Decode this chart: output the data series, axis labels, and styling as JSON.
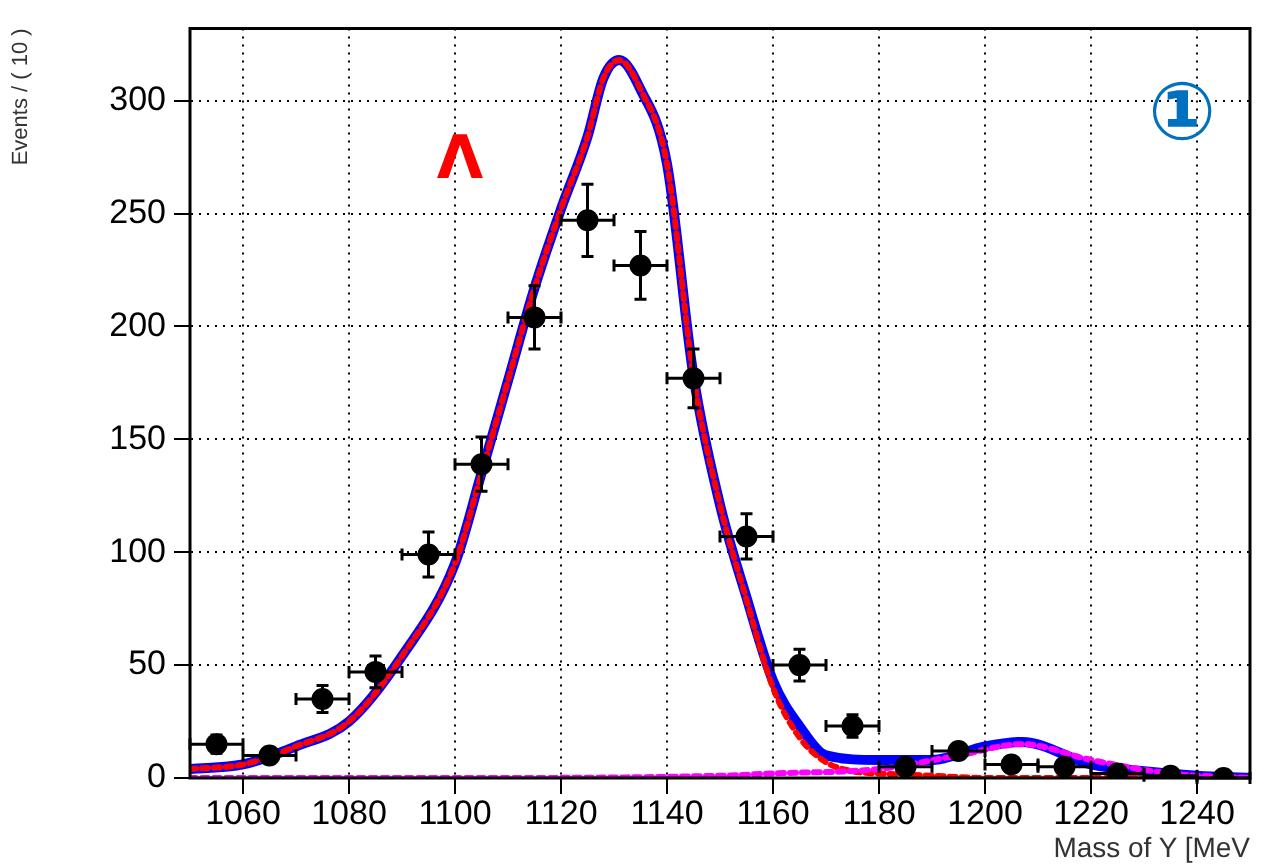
{
  "chart_data": {
    "type": "scatter",
    "xlabel": "Mass of Y [MeV",
    "ylabel": "Events / ( 10 )",
    "annotations": [
      "Λ",
      "①"
    ],
    "xlim": [
      1050,
      1250
    ],
    "xticks": [
      1060,
      1080,
      1100,
      1120,
      1140,
      1160,
      1180,
      1200,
      1220,
      1240
    ],
    "ylim": [
      0,
      332
    ],
    "yticks": [
      0,
      50,
      100,
      150,
      200,
      250,
      300
    ],
    "grid": true,
    "legend": false,
    "marker": "circle",
    "series": [
      {
        "type": "line",
        "color": "#0000ff",
        "line_style": "solid",
        "marker": "none",
        "x": [
          1050,
          1060,
          1070,
          1080,
          1090,
          1100,
          1105,
          1110,
          1115,
          1120,
          1125,
          1128,
          1131,
          1135,
          1140,
          1145,
          1150,
          1155,
          1160,
          1165,
          1170,
          1180,
          1190,
          1200,
          1207,
          1220,
          1230,
          1240,
          1250
        ],
        "values": [
          4,
          6,
          14,
          25,
          54,
          95,
          135,
          176,
          217,
          252,
          284,
          310,
          318,
          305,
          272,
          178,
          121,
          80,
          43,
          23,
          10,
          8,
          8,
          14,
          16,
          6,
          3,
          1,
          0
        ]
      },
      {
        "type": "line",
        "color": "#ff0000",
        "line_style": "dotted",
        "marker": "none",
        "x": [
          1050,
          1060,
          1070,
          1080,
          1090,
          1100,
          1105,
          1110,
          1115,
          1120,
          1125,
          1128,
          1131,
          1135,
          1140,
          1145,
          1150,
          1155,
          1160,
          1165,
          1170,
          1175,
          1180,
          1190,
          1200,
          1220,
          1250
        ],
        "values": [
          4,
          6,
          14,
          25,
          54,
          95,
          135,
          176,
          217,
          252,
          284,
          310,
          318,
          305,
          272,
          178,
          121,
          79,
          40,
          18,
          7,
          3,
          2,
          1,
          0,
          0,
          0
        ]
      },
      {
        "type": "line",
        "color": "#ff00ff",
        "line_style": "dotted",
        "marker": "none",
        "x": [
          1050,
          1100,
          1150,
          1160,
          1180,
          1195,
          1207,
          1220,
          1235,
          1250
        ],
        "values": [
          0,
          0,
          1,
          2,
          4,
          10,
          15,
          8,
          2,
          0
        ]
      },
      {
        "color": "#000000",
        "x": [
          1055,
          1065,
          1075,
          1085,
          1095,
          1105,
          1115,
          1125,
          1135,
          1145,
          1155,
          1165,
          1175,
          1185,
          1195,
          1205,
          1215,
          1225,
          1235,
          1245
        ],
        "values": [
          15,
          10,
          35,
          47,
          99,
          139,
          204,
          247,
          227,
          177,
          107,
          50,
          23,
          5,
          12,
          6,
          5,
          2,
          1,
          0
        ],
        "errors": [
          4,
          null,
          6,
          7,
          10,
          12,
          14,
          16,
          15,
          13,
          10,
          7,
          5,
          null,
          null,
          null,
          null,
          null,
          null,
          null
        ],
        "xerrors": [
          5,
          5,
          5,
          5,
          5,
          5,
          5,
          5,
          5,
          5,
          5,
          5,
          5,
          5,
          5,
          5,
          5,
          5,
          5,
          5
        ]
      }
    ]
  }
}
